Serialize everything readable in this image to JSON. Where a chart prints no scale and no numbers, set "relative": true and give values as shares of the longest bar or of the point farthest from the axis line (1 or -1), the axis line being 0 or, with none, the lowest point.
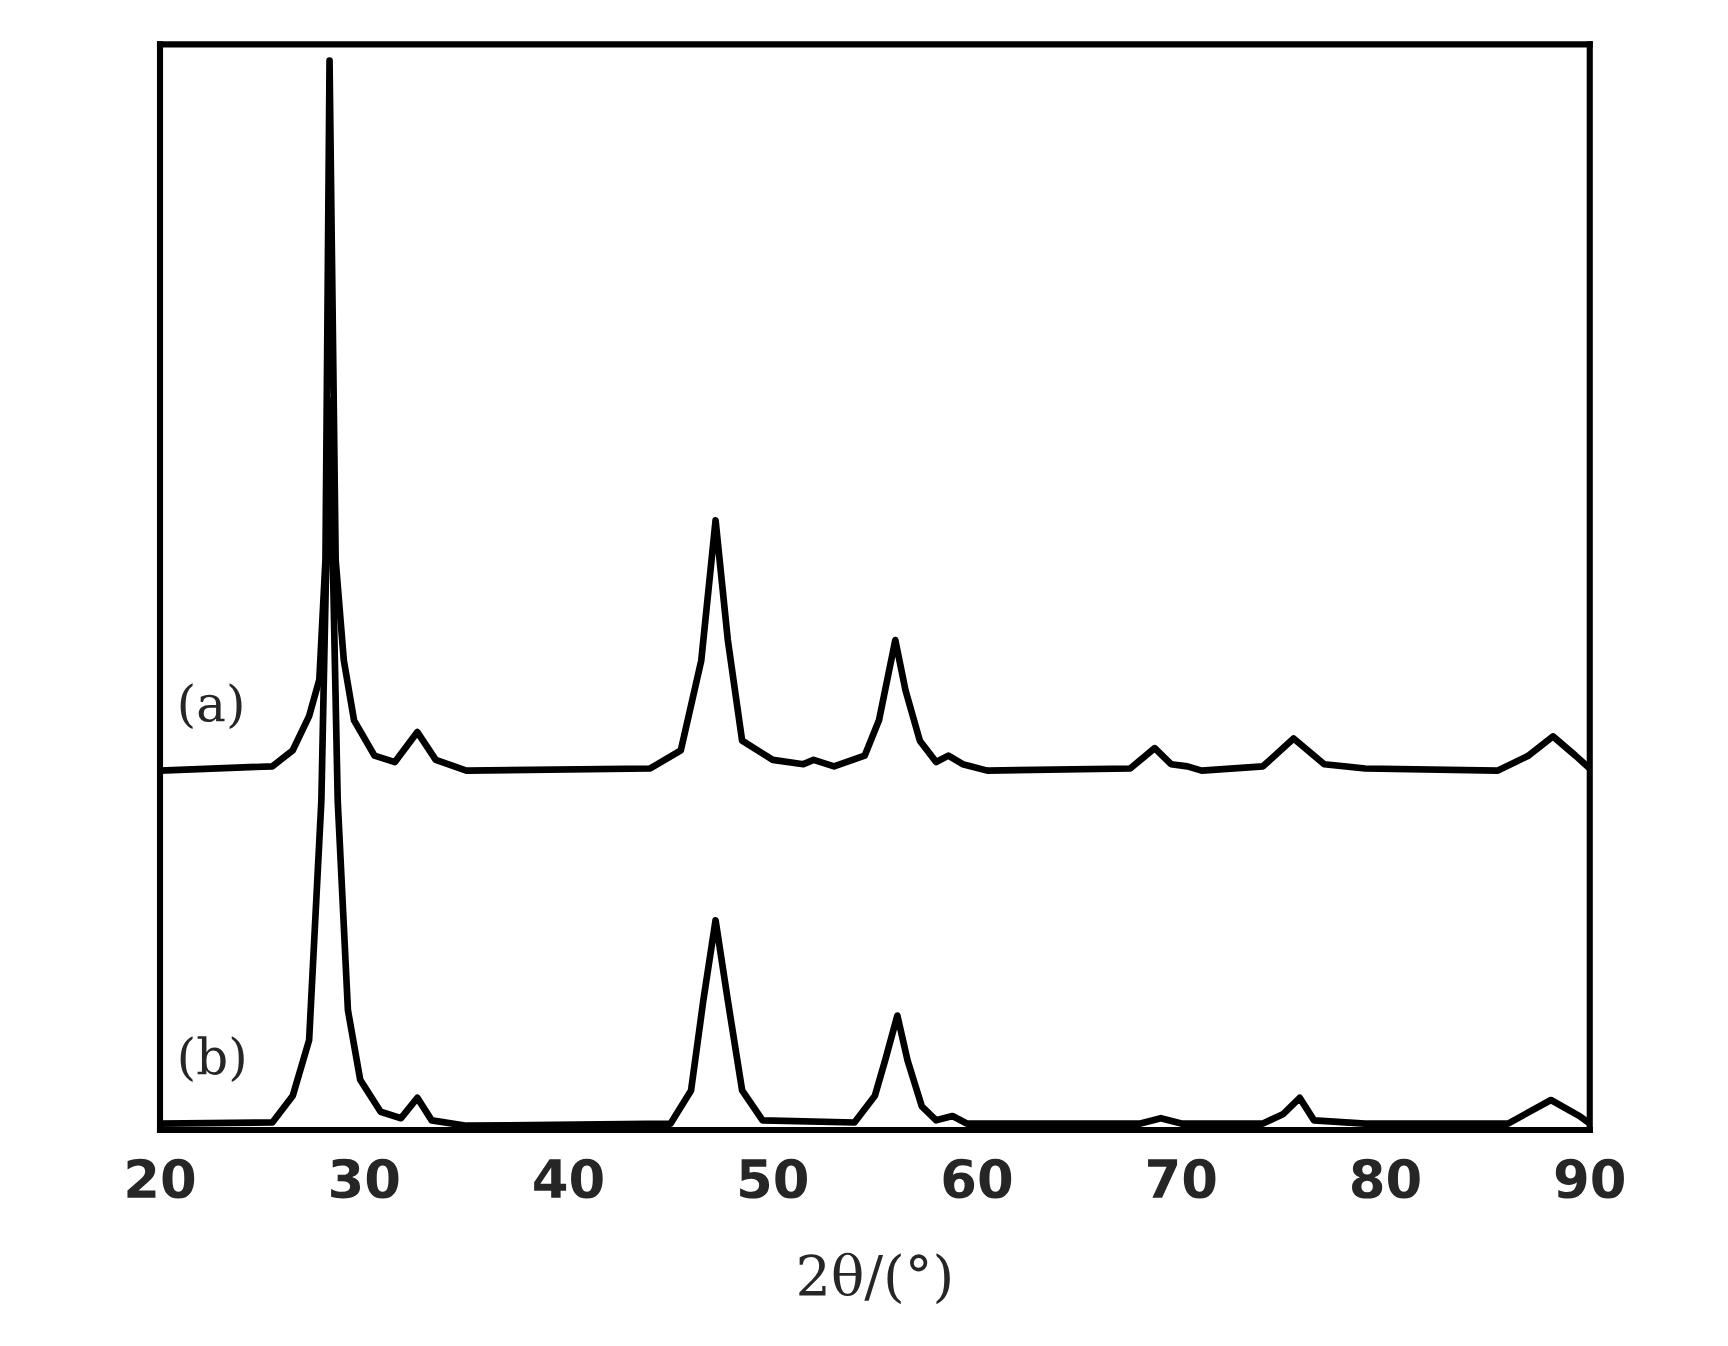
{
  "chart_data": {
    "type": "line",
    "relative": true,
    "xlabel": "2θ/(°)",
    "xlim": [
      20,
      90
    ],
    "xticks": [
      20,
      30,
      40,
      50,
      60,
      70,
      80,
      90
    ],
    "grid": false,
    "legend": false,
    "tick_labels": "x",
    "series": [
      {
        "name": "(a)",
        "color": "#000000",
        "x": [
          20,
          25.5,
          26.5,
          27.3,
          27.8,
          28.1,
          28.3,
          28.6,
          29.0,
          29.5,
          30.5,
          31.5,
          32.6,
          33.5,
          35,
          44,
          45.5,
          46.5,
          47.2,
          47.8,
          48.5,
          50,
          51.5,
          52,
          53,
          54.5,
          55.2,
          56,
          56.5,
          57.2,
          58,
          58.6,
          59.3,
          60.5,
          67.5,
          68.7,
          69.5,
          70.3,
          71,
          74,
          75.5,
          77,
          79,
          85.5,
          87,
          88.2,
          89.3,
          90
        ],
        "values": [
          0.336,
          0.34,
          0.355,
          0.387,
          0.421,
          0.533,
          1.0,
          0.533,
          0.439,
          0.383,
          0.35,
          0.344,
          0.372,
          0.346,
          0.336,
          0.338,
          0.355,
          0.439,
          0.57,
          0.458,
          0.364,
          0.346,
          0.342,
          0.346,
          0.34,
          0.35,
          0.383,
          0.458,
          0.411,
          0.364,
          0.344,
          0.35,
          0.342,
          0.336,
          0.338,
          0.357,
          0.342,
          0.34,
          0.336,
          0.34,
          0.366,
          0.342,
          0.338,
          0.336,
          0.35,
          0.368,
          0.35,
          0.338
        ]
      },
      {
        "name": "(b)",
        "color": "#000000",
        "x": [
          20,
          25.5,
          26.5,
          27.3,
          27.9,
          28.3,
          28.7,
          29.2,
          29.8,
          30.8,
          31.8,
          32.6,
          33.3,
          35,
          45,
          46,
          46.6,
          47.2,
          47.8,
          48.5,
          49.5,
          54,
          55,
          55.5,
          56.1,
          56.6,
          57.3,
          58,
          58.8,
          59.5,
          68,
          69,
          70,
          74,
          75,
          75.8,
          76.5,
          79,
          86,
          88.1,
          89.5,
          90
        ],
        "values": [
          0.006,
          0.007,
          0.032,
          0.084,
          0.308,
          0.682,
          0.308,
          0.112,
          0.047,
          0.017,
          0.011,
          0.03,
          0.009,
          0.004,
          0.006,
          0.037,
          0.121,
          0.196,
          0.121,
          0.037,
          0.009,
          0.007,
          0.032,
          0.065,
          0.107,
          0.065,
          0.022,
          0.009,
          0.013,
          0.006,
          0.006,
          0.011,
          0.006,
          0.006,
          0.015,
          0.03,
          0.009,
          0.006,
          0.006,
          0.028,
          0.013,
          0.006
        ]
      }
    ]
  }
}
